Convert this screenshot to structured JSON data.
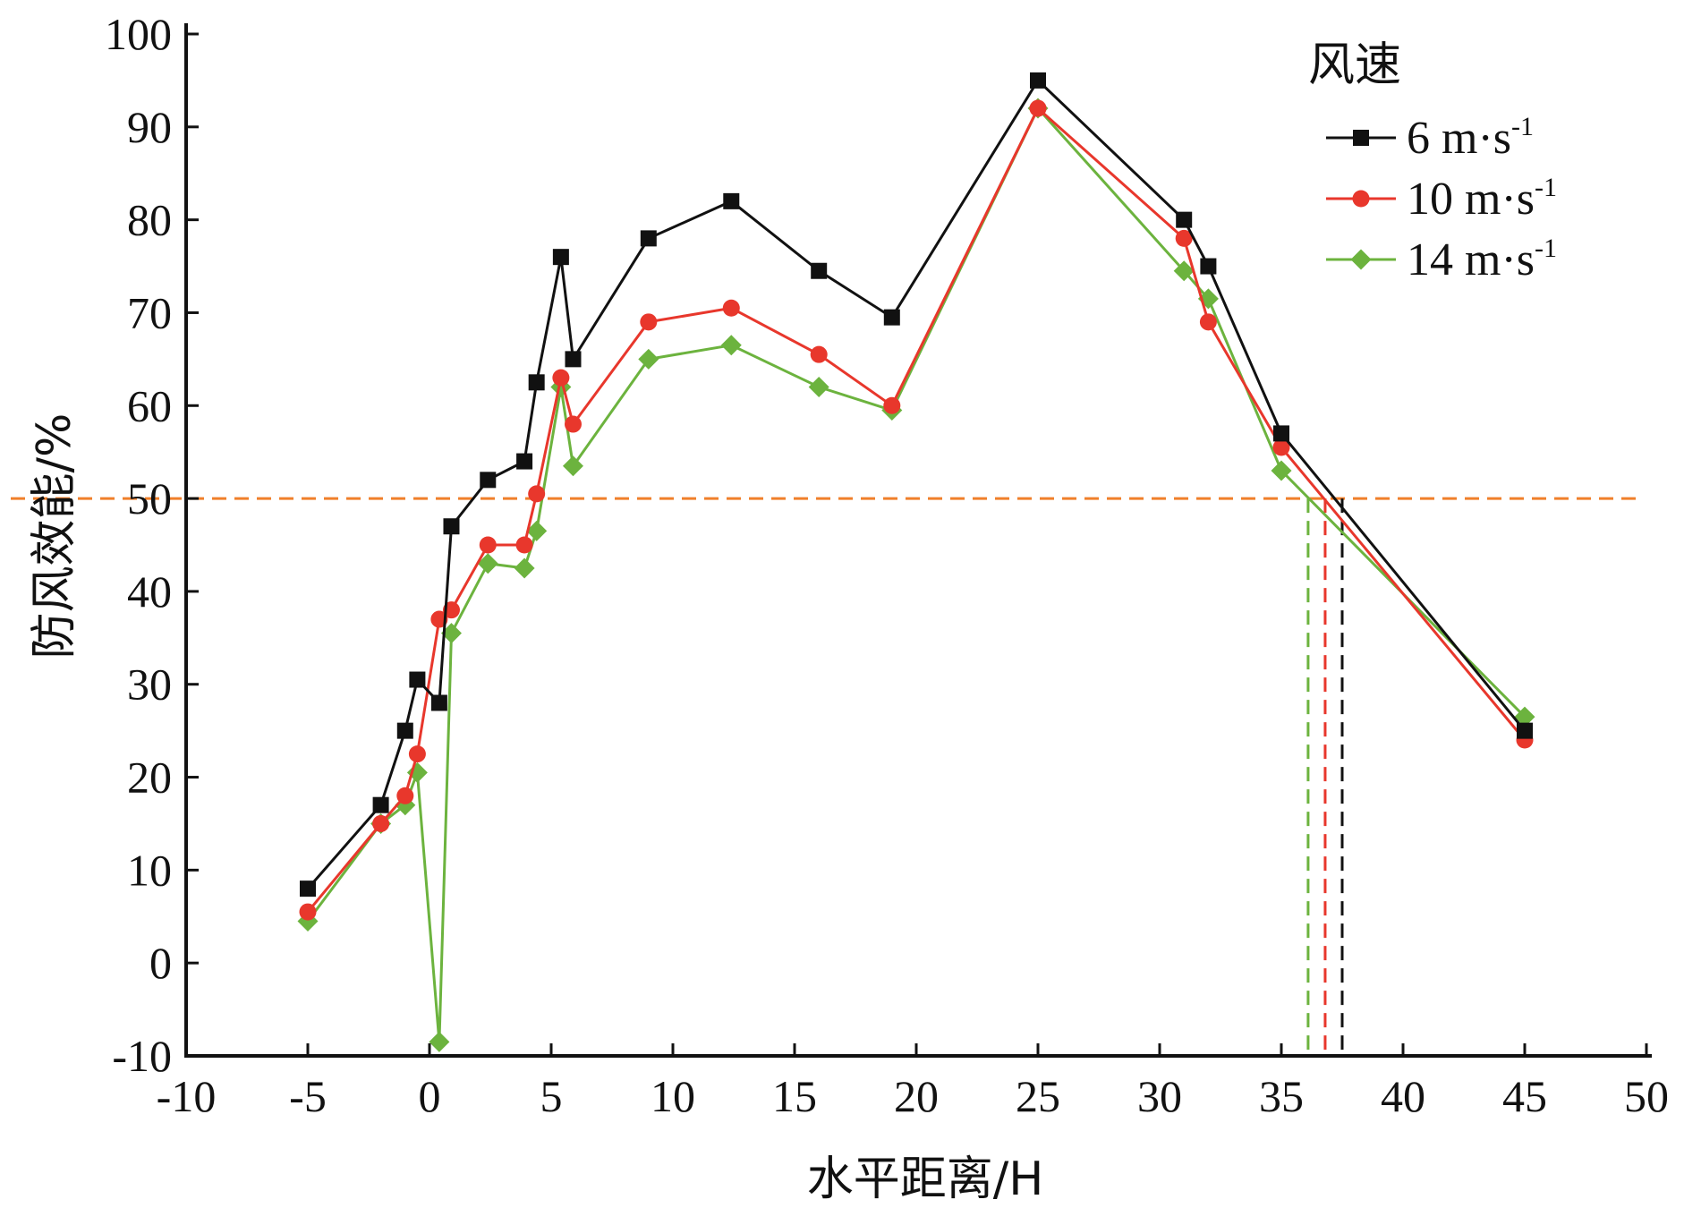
{
  "chart_data": {
    "type": "line",
    "xlabel": "水平距离/H",
    "ylabel": "防风效能/%",
    "xlim": [
      -10,
      50
    ],
    "ylim": [
      -10,
      100
    ],
    "xticks": [
      -10,
      -5,
      0,
      5,
      10,
      15,
      20,
      25,
      30,
      35,
      40,
      45,
      50
    ],
    "xtick_labels": [
      "-10",
      "-5",
      "0",
      "5",
      "10",
      "15",
      "20",
      "25",
      "30",
      "35",
      "40",
      "45",
      "50"
    ],
    "yticks": [
      -10,
      0,
      10,
      20,
      30,
      40,
      50,
      60,
      70,
      80,
      90,
      100
    ],
    "ytick_labels": [
      "-10",
      "0",
      "10",
      "20",
      "30",
      "40",
      "50",
      "60",
      "70",
      "80",
      "90",
      "100"
    ],
    "grid": false,
    "legend": {
      "title": "风速",
      "position": "top-right"
    },
    "series": [
      {
        "name": "6 m·s",
        "name_sup": "-1",
        "color": "#111111",
        "marker": "square",
        "x": [
          -5,
          -2,
          -1,
          -0.5,
          0.4,
          0.9,
          2.4,
          3.9,
          4.4,
          5.4,
          5.9,
          9,
          12.4,
          16,
          19,
          25,
          31,
          32,
          35,
          45
        ],
        "y": [
          8,
          17,
          25,
          30.5,
          28,
          47,
          52,
          54,
          62.5,
          76,
          65,
          78,
          82,
          74.5,
          69.5,
          95,
          80,
          75,
          57,
          25
        ]
      },
      {
        "name": "10 m·s",
        "name_sup": "-1",
        "color": "#e8372c",
        "marker": "circle",
        "x": [
          -5,
          -2,
          -1,
          -0.5,
          0.4,
          0.9,
          2.4,
          3.9,
          4.4,
          5.4,
          5.9,
          9,
          12.4,
          16,
          19,
          25,
          31,
          32,
          35,
          45
        ],
        "y": [
          5.5,
          15,
          18,
          22.5,
          37,
          38,
          45,
          45,
          50.5,
          63,
          58,
          69,
          70.5,
          65.5,
          60,
          92,
          78,
          69,
          55.5,
          24
        ]
      },
      {
        "name": "14 m·s",
        "name_sup": "-1",
        "color": "#6cb33e",
        "marker": "diamond",
        "x": [
          -5,
          -2,
          -1,
          -0.5,
          0.4,
          0.9,
          2.4,
          3.9,
          4.4,
          5.4,
          5.9,
          9,
          12.4,
          16,
          19,
          25,
          31,
          32,
          35,
          45
        ],
        "y": [
          4.5,
          15,
          17,
          20.5,
          -8.5,
          35.5,
          43,
          42.5,
          46.5,
          62,
          53.5,
          65,
          66.5,
          62,
          59.5,
          92,
          74.5,
          71.5,
          53,
          26.5
        ]
      }
    ],
    "reference_line": {
      "y": 50,
      "color": "#f07f2a",
      "style": "dashed"
    },
    "drop_lines": [
      {
        "x": 37.5,
        "color": "#111111"
      },
      {
        "x": 36.8,
        "color": "#e8372c"
      },
      {
        "x": 36.1,
        "color": "#6cb33e"
      }
    ]
  }
}
